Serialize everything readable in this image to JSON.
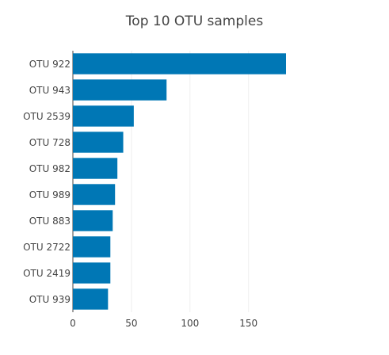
{
  "chart_data": {
    "type": "bar",
    "orientation": "horizontal",
    "title": "Top 10 OTU samples",
    "categories": [
      "OTU 922",
      "OTU 943",
      "OTU 2539",
      "OTU 728",
      "OTU 982",
      "OTU 989",
      "OTU 883",
      "OTU 2722",
      "OTU 2419",
      "OTU 939"
    ],
    "values": [
      182,
      80,
      52,
      43,
      38,
      36,
      34,
      32,
      32,
      30
    ],
    "xlabel": "",
    "ylabel": "",
    "xlim": [
      0,
      182
    ],
    "xticks": [
      0,
      50,
      100,
      150
    ],
    "grid": "vertical gridlines",
    "colors": {
      "bar": "#0077b5",
      "grid": "#eeeeee",
      "text": "#444444"
    }
  }
}
